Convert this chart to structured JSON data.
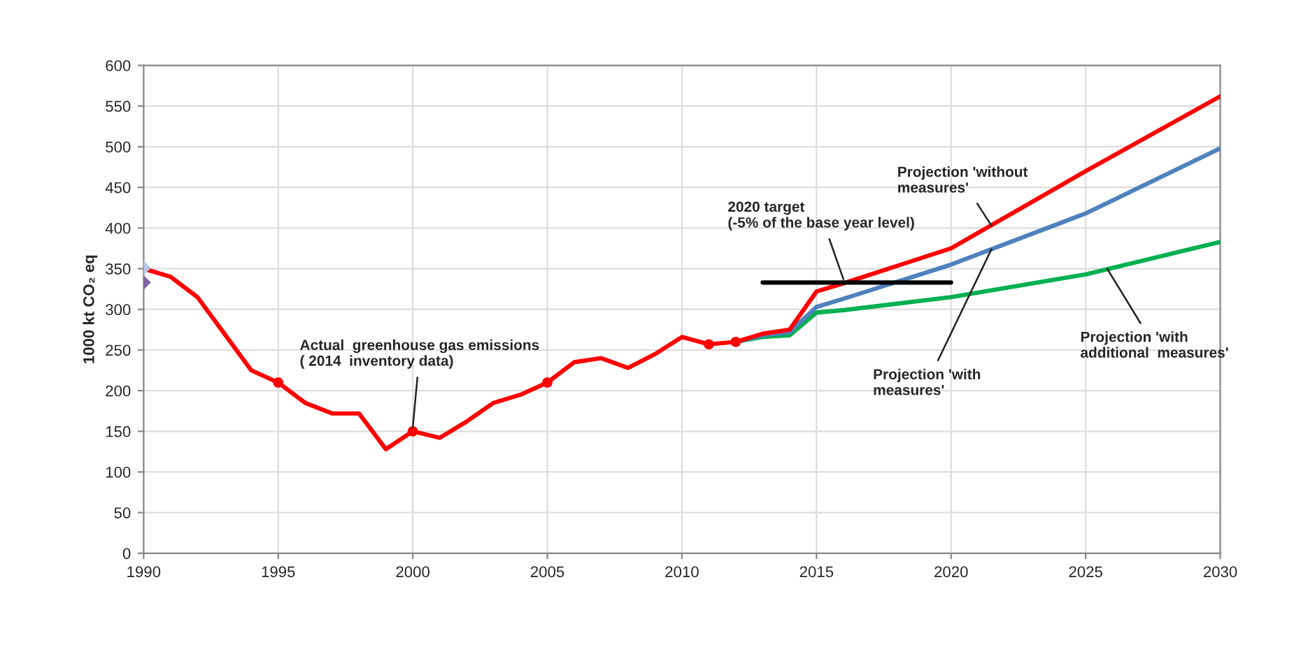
{
  "chart_data": {
    "type": "line",
    "ylabel": "1000 kt CO₂ eq",
    "xlim": [
      1990,
      2030
    ],
    "xticks": [
      1990,
      1995,
      2000,
      2005,
      2010,
      2015,
      2020,
      2025,
      2030
    ],
    "ylim": [
      0,
      600
    ],
    "yticks": [
      0,
      50,
      100,
      150,
      200,
      250,
      300,
      350,
      400,
      450,
      500,
      550,
      600
    ],
    "grid": true,
    "line_style": "solid",
    "series": [
      {
        "color": "#00b050",
        "x": [
          2012,
          2013,
          2014,
          2015,
          2016,
          2020,
          2025,
          2030
        ],
        "values": [
          260,
          266,
          268,
          296,
          299,
          315,
          343,
          383
        ]
      },
      {
        "color": "#4f81bd",
        "x": [
          2012,
          2013,
          2014,
          2015,
          2016,
          2020,
          2025,
          2030
        ],
        "values": [
          260,
          268,
          272,
          303,
          313,
          355,
          418,
          498
        ]
      },
      {
        "color": "#ff0000",
        "x": [
          1990,
          1991,
          1992,
          1993,
          1994,
          1995,
          1996,
          1997,
          1998,
          1999,
          2000,
          2001,
          2002,
          2003,
          2004,
          2005,
          2006,
          2007,
          2008,
          2009,
          2010,
          2011,
          2012,
          2013,
          2014,
          2015,
          2016,
          2020,
          2025,
          2030
        ],
        "values": [
          350,
          340,
          315,
          270,
          225,
          210,
          185,
          172,
          172,
          128,
          150,
          142,
          162,
          185,
          195,
          210,
          235,
          240,
          228,
          245,
          266,
          257,
          260,
          270,
          275,
          322,
          332,
          375,
          470,
          562
        ]
      },
      {
        "type": "scatter",
        "marker": "circle",
        "color": "#ff0000",
        "x": [
          1995,
          2000,
          2005,
          2011,
          2012
        ],
        "values": [
          210,
          150,
          210,
          257,
          260
        ]
      },
      {
        "type": "scatter",
        "marker": "diamond",
        "color": "#b4c7e7",
        "x": [
          1990
        ],
        "values": [
          351
        ]
      },
      {
        "type": "scatter",
        "marker": "diamond",
        "color": "#8064a2",
        "x": [
          1990
        ],
        "values": [
          333
        ]
      },
      {
        "color": "#000000",
        "x": [
          2013,
          2020
        ],
        "values": [
          333,
          333
        ]
      }
    ],
    "annotations": [
      {
        "text": "Actual  greenhouse gas emissions\n( 2014  inventory data)",
        "x": 2000,
        "y": 155
      },
      {
        "text": "2020 target\n(-5% of the base year level)",
        "x": 2016,
        "y": 337
      },
      {
        "text": "Projection 'without\nmeasures'",
        "x": 2021.5,
        "y": 403
      },
      {
        "text": "Projection 'with\nmeasures'",
        "x": 2021.5,
        "y": 374
      },
      {
        "text": "Projection 'with\nadditional  measures'",
        "x": 2025.8,
        "y": 350
      }
    ]
  }
}
